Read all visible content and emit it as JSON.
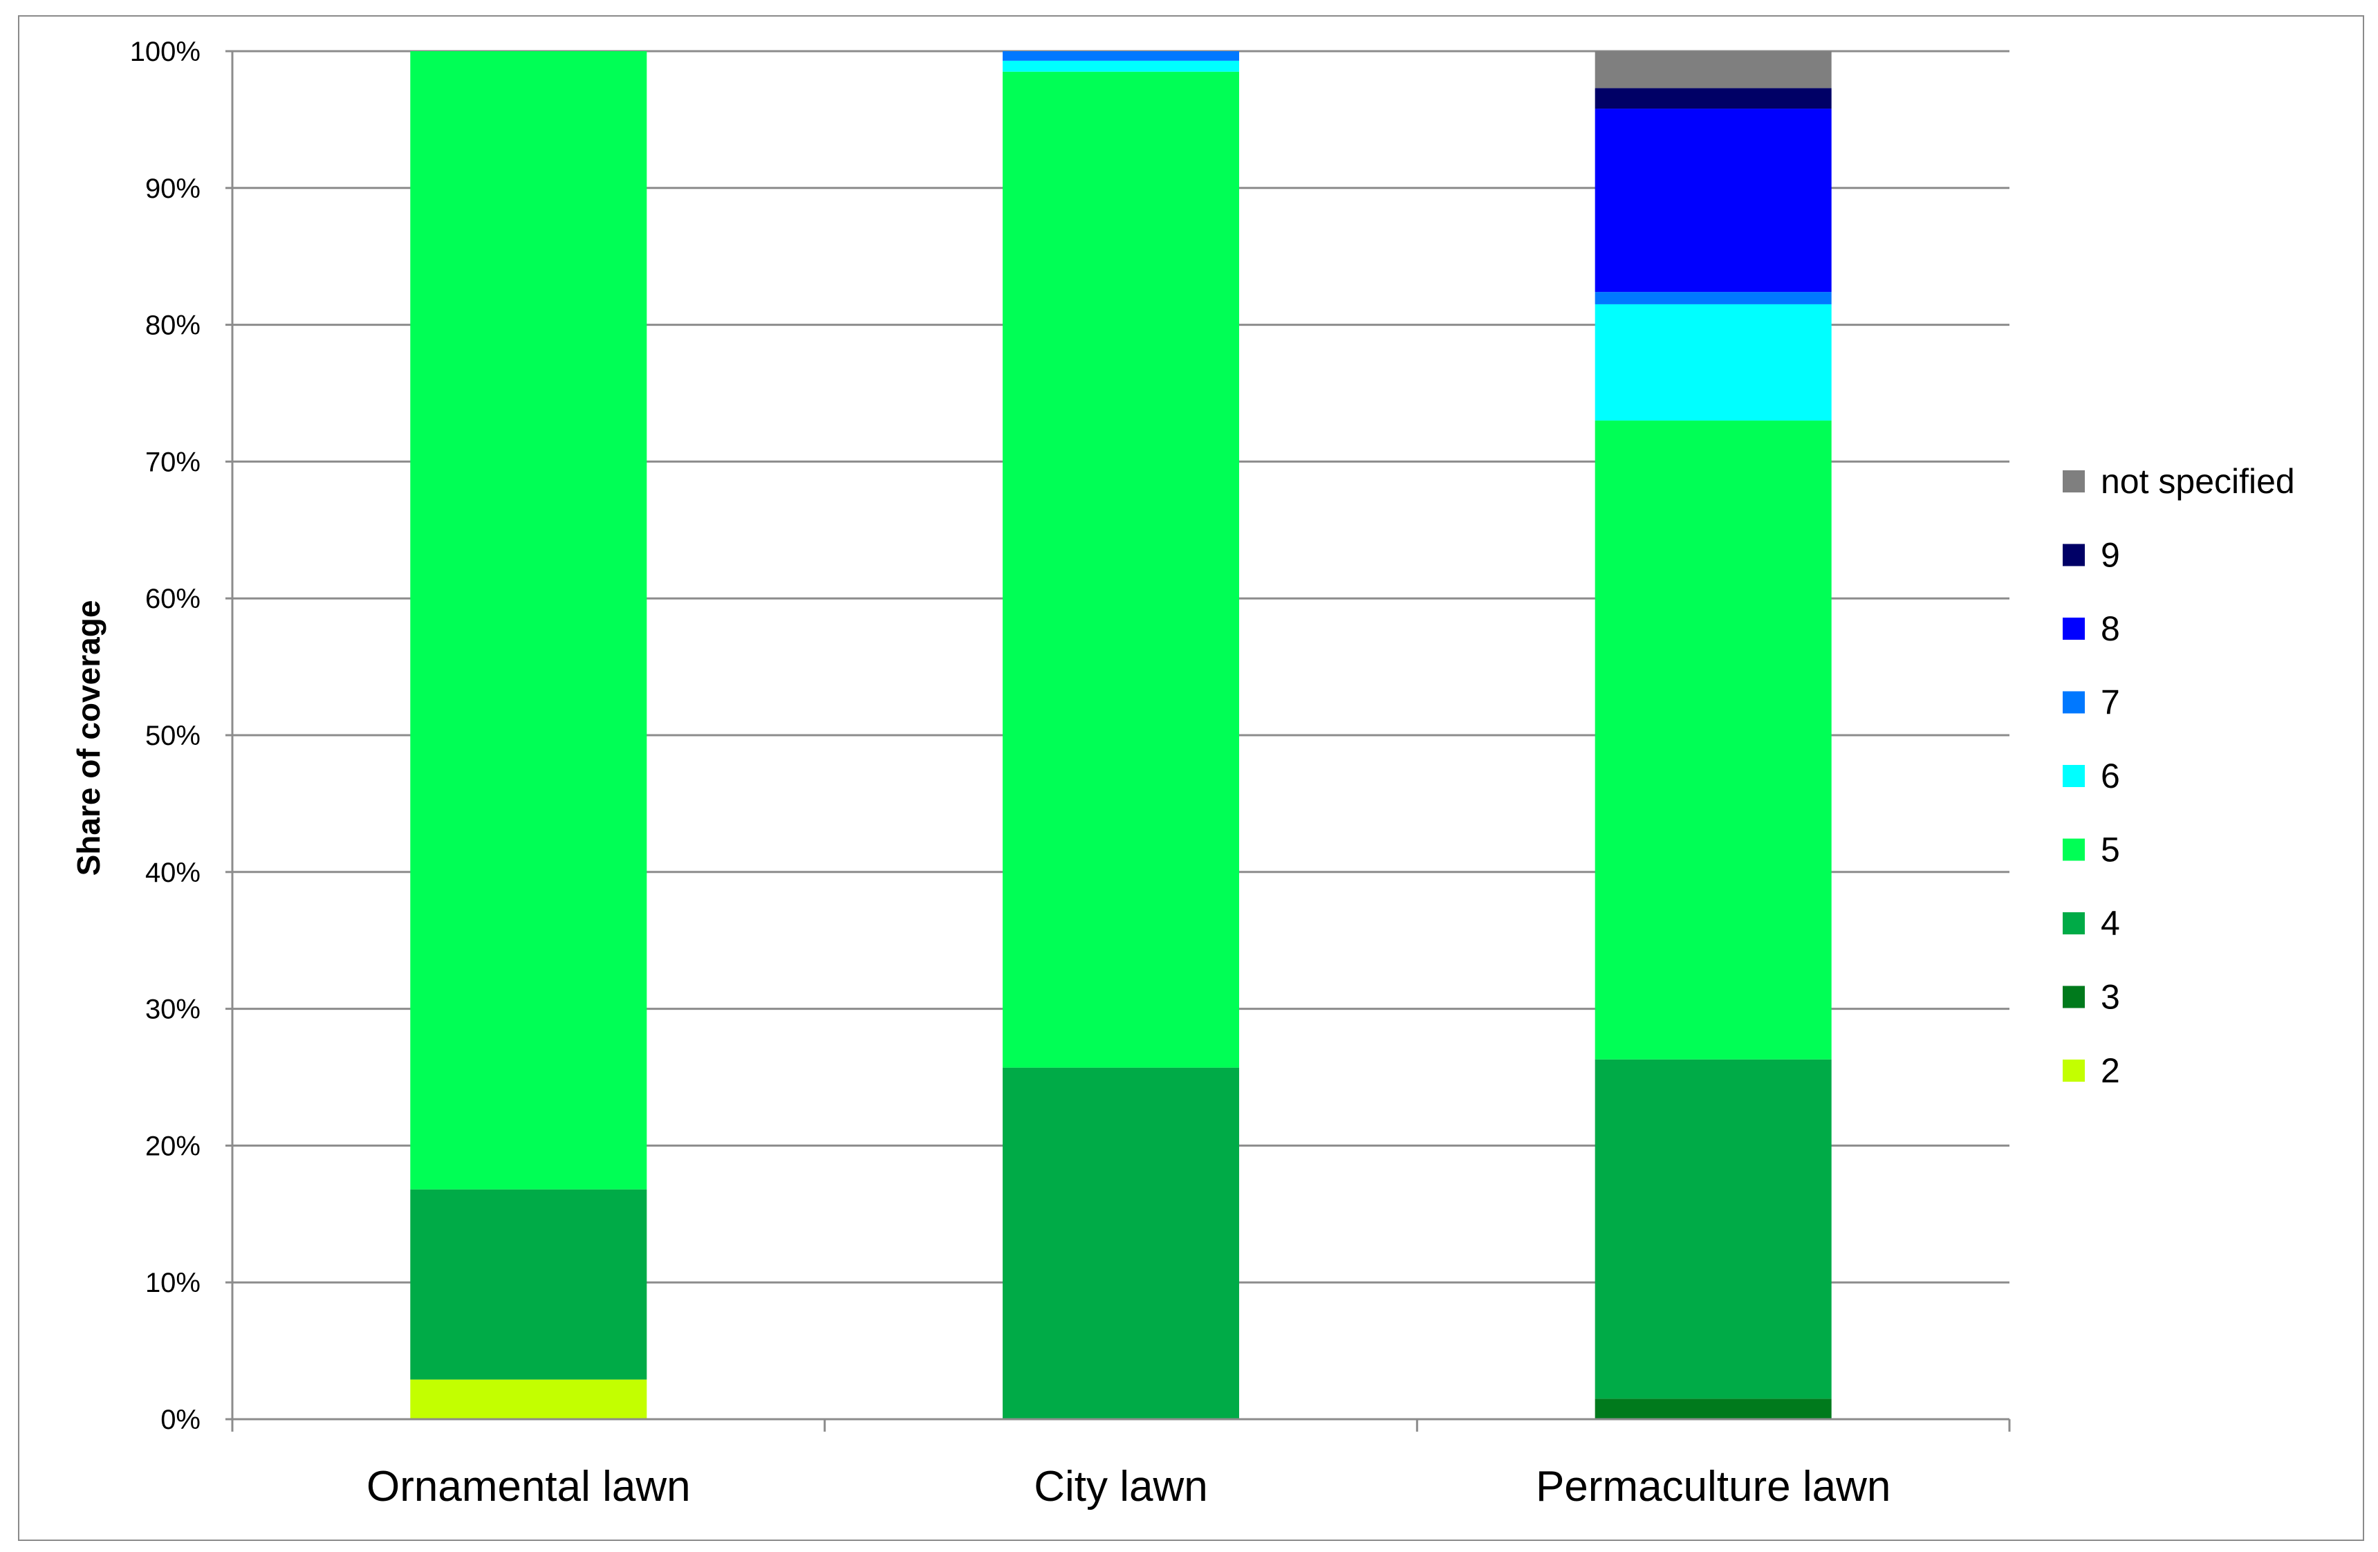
{
  "chart_data": {
    "type": "bar",
    "stacked": true,
    "title": "",
    "xlabel": "",
    "ylabel": "Share of coverage",
    "ylim": [
      0,
      100
    ],
    "y_ticks": [
      "0%",
      "10%",
      "20%",
      "30%",
      "40%",
      "50%",
      "60%",
      "70%",
      "80%",
      "90%",
      "100%"
    ],
    "categories": [
      "Ornamental lawn",
      "City lawn",
      "Permaculture lawn"
    ],
    "grid": true,
    "legend_position": "right",
    "series": [
      {
        "name": "2",
        "color": "#c3ff00",
        "values": [
          2.9,
          0,
          0
        ]
      },
      {
        "name": "3",
        "color": "#007a1c",
        "values": [
          0,
          0,
          1.5
        ]
      },
      {
        "name": "4",
        "color": "#00ab47",
        "values": [
          13.9,
          25.7,
          24.8
        ]
      },
      {
        "name": "5",
        "color": "#00ff55",
        "values": [
          83.2,
          72.8,
          46.7
        ]
      },
      {
        "name": "6",
        "color": "#00ffff",
        "values": [
          0,
          0.8,
          8.5
        ]
      },
      {
        "name": "7",
        "color": "#0078ff",
        "values": [
          0,
          0.7,
          0.9
        ]
      },
      {
        "name": "8",
        "color": "#0000ff",
        "values": [
          0,
          0,
          13.4
        ]
      },
      {
        "name": "9",
        "color": "#000066",
        "values": [
          0,
          0,
          1.5
        ]
      },
      {
        "name": "not specified",
        "color": "#7f7f7f",
        "values": [
          0,
          0,
          2.7
        ]
      }
    ]
  }
}
